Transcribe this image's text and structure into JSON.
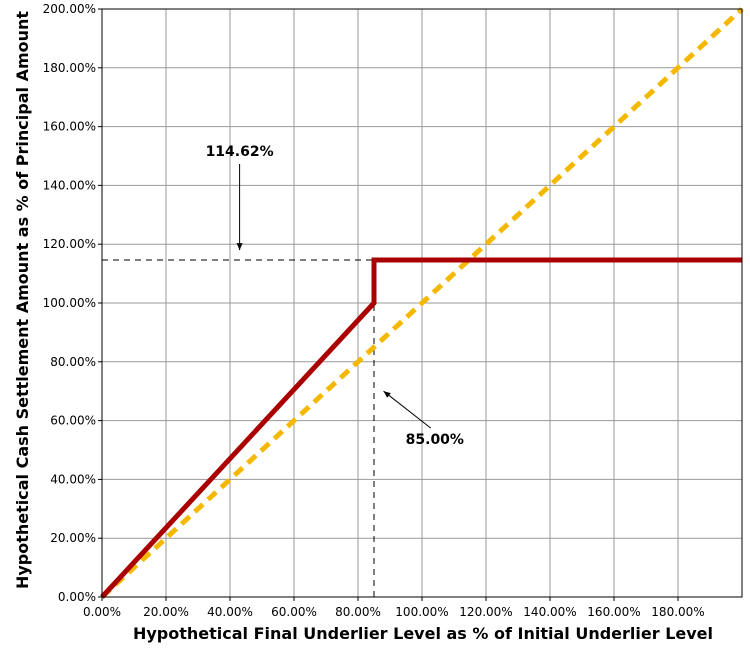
{
  "chart_data": {
    "type": "line",
    "title": "",
    "xlabel": "Hypothetical Final Underlier Level as % of Initial Underlier Level",
    "ylabel": "Hypothetical Cash Settlement Amount as % of Principal Amount",
    "xlim": [
      0,
      200
    ],
    "ylim": [
      0,
      200
    ],
    "x_ticks": [
      0,
      20,
      40,
      60,
      80,
      100,
      120,
      140,
      160,
      180
    ],
    "x_tick_labels": [
      "0.00%",
      "20.00%",
      "40.00%",
      "60.00%",
      "80.00%",
      "100.00%",
      "120.00%",
      "140.00%",
      "160.00%",
      "180.00%"
    ],
    "y_ticks": [
      0,
      20,
      40,
      60,
      80,
      100,
      120,
      140,
      160,
      180,
      200
    ],
    "y_tick_labels": [
      "0.00%",
      "20.00%",
      "40.00%",
      "60.00%",
      "80.00%",
      "100.00%",
      "120.00%",
      "140.00%",
      "160.00%",
      "180.00%",
      "200.00%"
    ],
    "grid": true,
    "series": [
      {
        "name": "",
        "color": "#aa0000",
        "style": "solid",
        "points": [
          [
            0,
            0
          ],
          [
            85,
            100
          ],
          [
            85,
            114.62
          ],
          [
            200,
            114.62
          ]
        ]
      },
      {
        "name": "",
        "color": "#f5b800",
        "style": "dashed",
        "points": [
          [
            0,
            0
          ],
          [
            200,
            200
          ]
        ]
      }
    ],
    "reference_lines": [
      {
        "orientation": "horizontal",
        "value": 114.62,
        "from": 0,
        "to": 85
      },
      {
        "orientation": "vertical",
        "value": 85,
        "from": 0,
        "to": 100
      }
    ],
    "annotations": [
      {
        "text": "114.62%",
        "points_to": [
          43,
          118
        ],
        "label_at": [
          43,
          150
        ]
      },
      {
        "text": "85.00%",
        "points_to": [
          88,
          70
        ],
        "label_at": [
          104,
          52
        ]
      }
    ]
  }
}
